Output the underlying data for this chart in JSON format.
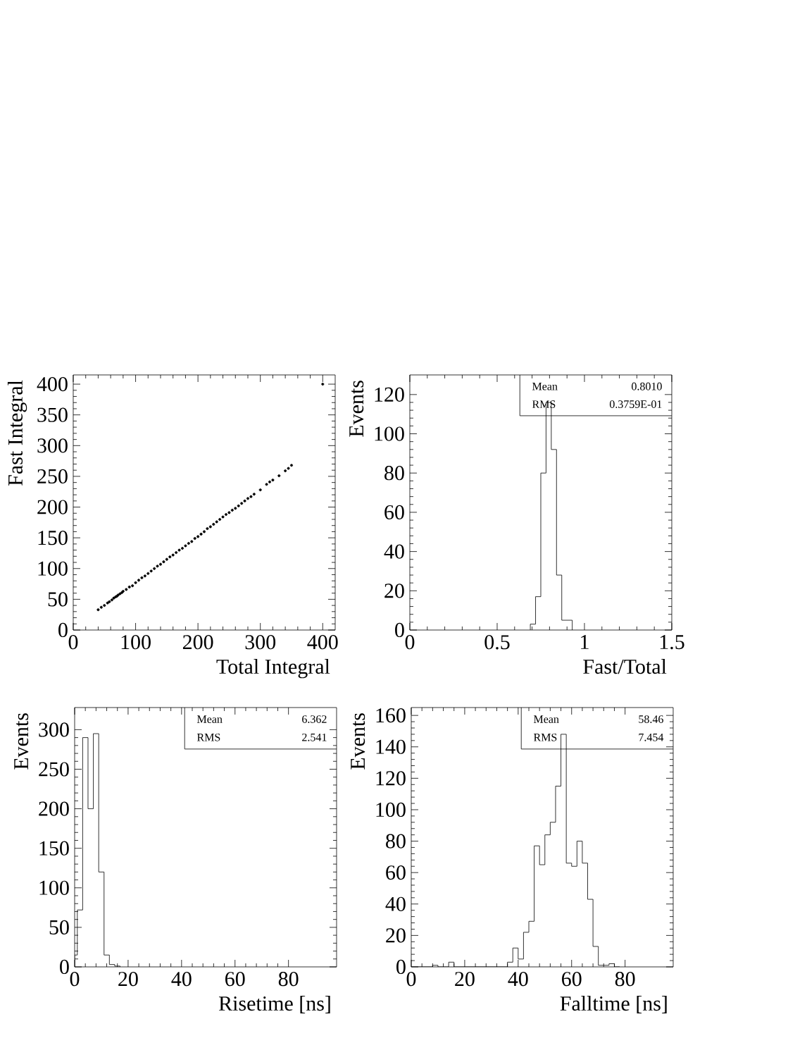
{
  "chart_data": [
    {
      "type": "scatter",
      "xlabel": "Total Integral",
      "ylabel": "Fast Integral",
      "color": "#000000",
      "x": [
        40,
        45,
        50,
        55,
        58,
        62,
        65,
        68,
        70,
        72,
        75,
        78,
        80,
        85,
        90,
        95,
        100,
        105,
        110,
        115,
        120,
        125,
        130,
        135,
        140,
        145,
        150,
        155,
        160,
        165,
        170,
        175,
        180,
        185,
        190,
        195,
        200,
        205,
        210,
        215,
        220,
        225,
        230,
        235,
        240,
        245,
        250,
        255,
        260,
        265,
        270,
        275,
        280,
        285,
        290,
        300,
        310,
        315,
        320,
        330,
        340,
        345,
        350,
        400
      ],
      "values": [
        33,
        37,
        40,
        44,
        46,
        49,
        52,
        54,
        55,
        57,
        59,
        61,
        63,
        66,
        70,
        72,
        77,
        81,
        85,
        88,
        92,
        96,
        100,
        104,
        107,
        111,
        115,
        119,
        122,
        126,
        130,
        133,
        137,
        141,
        144,
        149,
        152,
        156,
        160,
        165,
        168,
        172,
        176,
        180,
        184,
        188,
        191,
        195,
        198,
        202,
        206,
        210,
        214,
        217,
        221,
        228,
        237,
        241,
        244,
        251,
        259,
        263,
        268,
        400
      ],
      "xlim": [
        0,
        420
      ],
      "ylim": [
        0,
        415
      ],
      "xticks": [
        0,
        100,
        200,
        300,
        400
      ],
      "yticks": [
        0,
        50,
        100,
        150,
        200,
        250,
        300,
        350,
        400
      ]
    },
    {
      "type": "histogram",
      "xlabel": "Fast/Total",
      "ylabel": "Events",
      "color": "#000000",
      "bins": [
        0.69,
        0.72,
        0.75,
        0.78,
        0.81,
        0.84,
        0.87,
        0.9,
        0.93
      ],
      "values": [
        3,
        17,
        80,
        116,
        92,
        28,
        5,
        5
      ],
      "xlim": [
        0,
        1.5
      ],
      "ylim": [
        0,
        130
      ],
      "xticks": [
        0,
        0.5,
        1,
        1.5
      ],
      "yticks": [
        0,
        20,
        40,
        60,
        80,
        100,
        120
      ],
      "annotations": [
        "Mean",
        "0.8010",
        "RMS",
        "0.3759E-01"
      ]
    },
    {
      "type": "histogram",
      "xlabel": "Risetime  [ns]",
      "ylabel": "Events",
      "color": "#000000",
      "bins": [
        0,
        1,
        3,
        5,
        7,
        9,
        11,
        13,
        15,
        17
      ],
      "values": [
        15,
        72,
        290,
        200,
        295,
        120,
        15,
        3,
        1
      ],
      "xlim": [
        0,
        98
      ],
      "ylim": [
        0,
        328
      ],
      "xticks": [
        0,
        20,
        40,
        60,
        80
      ],
      "yticks": [
        0,
        50,
        100,
        150,
        200,
        250,
        300
      ],
      "annotations": [
        "Mean",
        "6.362",
        "RMS",
        "2.541"
      ]
    },
    {
      "type": "histogram",
      "xlabel": "Falltime  [ns]",
      "ylabel": "Events",
      "color": "#000000",
      "bins": [
        0,
        2,
        4,
        6,
        8,
        10,
        12,
        14,
        16,
        18,
        20,
        22,
        24,
        26,
        28,
        30,
        32,
        34,
        36,
        38,
        40,
        42,
        44,
        46,
        48,
        50,
        52,
        54,
        56,
        58,
        60,
        62,
        64,
        66,
        68,
        70,
        72,
        74,
        76,
        78
      ],
      "values": [
        0,
        0,
        0,
        0,
        1,
        0,
        0,
        3,
        0,
        0,
        0,
        0,
        0,
        0,
        0,
        0,
        0,
        0,
        3,
        12,
        5,
        22,
        29,
        77,
        65,
        84,
        92,
        115,
        148,
        66,
        64,
        80,
        66,
        43,
        13,
        1,
        1,
        2,
        0
      ],
      "xlim": [
        0,
        98
      ],
      "ylim": [
        0,
        165
      ],
      "xticks": [
        0,
        20,
        40,
        60,
        80
      ],
      "yticks": [
        0,
        20,
        40,
        60,
        80,
        100,
        120,
        140,
        160
      ],
      "annotations": [
        "Mean",
        "58.46",
        "RMS",
        "7.454"
      ]
    }
  ]
}
